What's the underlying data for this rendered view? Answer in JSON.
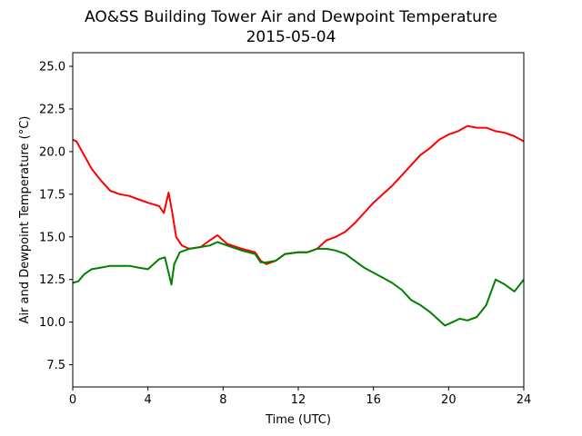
{
  "chart_data": {
    "type": "line",
    "title": "AO&SS Building Tower Air and Dewpoint Temperature",
    "subtitle": "2015-05-04",
    "xlabel": "Time (UTC)",
    "ylabel": "Air and Dewpoint Temperature (°C)",
    "xlim": [
      0,
      24
    ],
    "ylim": [
      6.2,
      25.8
    ],
    "xticks": [
      0,
      4,
      8,
      12,
      16,
      20,
      24
    ],
    "xtick_labels": [
      "0",
      "4",
      "8",
      "12",
      "16",
      "20",
      "24"
    ],
    "yticks": [
      7.5,
      10.0,
      12.5,
      15.0,
      17.5,
      20.0,
      22.5,
      25.0
    ],
    "ytick_labels": [
      "7.5",
      "10.0",
      "12.5",
      "15.0",
      "17.5",
      "20.0",
      "22.5",
      "25.0"
    ],
    "grid": false,
    "series": [
      {
        "color": "#ff0000",
        "x": [
          0,
          0.2,
          0.5,
          1.0,
          1.5,
          2.0,
          2.5,
          3.0,
          3.5,
          4.0,
          4.3,
          4.6,
          4.85,
          5.1,
          5.3,
          5.5,
          5.8,
          6.2,
          6.8,
          7.3,
          7.7,
          8.2,
          9.0,
          9.7,
          10.0,
          10.3,
          10.8,
          11.3,
          12.0,
          12.5,
          13.0,
          13.5,
          14.0,
          14.5,
          15.0,
          15.5,
          16.0,
          16.5,
          17.0,
          17.5,
          18.0,
          18.5,
          19.0,
          19.5,
          20.0,
          20.5,
          21.0,
          21.5,
          22.0,
          22.5,
          23.0,
          23.5,
          24.0
        ],
        "y": [
          20.7,
          20.6,
          20.0,
          19.0,
          18.3,
          17.7,
          17.5,
          17.4,
          17.2,
          17.0,
          16.9,
          16.8,
          16.4,
          17.6,
          16.4,
          15.0,
          14.5,
          14.3,
          14.4,
          14.8,
          15.1,
          14.6,
          14.3,
          14.1,
          13.6,
          13.4,
          13.6,
          14.0,
          14.1,
          14.1,
          14.3,
          14.8,
          15.0,
          15.3,
          15.8,
          16.4,
          17.0,
          17.5,
          18.0,
          18.6,
          19.2,
          19.8,
          20.2,
          20.7,
          21.0,
          21.2,
          21.5,
          21.4,
          21.4,
          21.2,
          21.1,
          20.9,
          20.6
        ]
      },
      {
        "color": "#008000",
        "x": [
          0,
          0.3,
          0.6,
          1.0,
          1.5,
          2.0,
          2.5,
          3.0,
          3.5,
          4.0,
          4.3,
          4.6,
          4.9,
          5.1,
          5.25,
          5.4,
          5.7,
          6.2,
          6.8,
          7.3,
          7.7,
          8.2,
          9.0,
          9.7,
          10.0,
          10.3,
          10.8,
          11.3,
          12.0,
          12.5,
          13.0,
          13.5,
          14.0,
          14.5,
          15.0,
          15.5,
          16.0,
          16.5,
          17.0,
          17.5,
          18.0,
          18.5,
          19.0,
          19.5,
          19.8,
          20.2,
          20.6,
          21.0,
          21.5,
          22.0,
          22.5,
          23.0,
          23.5,
          24.0
        ],
        "y": [
          12.3,
          12.4,
          12.8,
          13.1,
          13.2,
          13.3,
          13.3,
          13.3,
          13.2,
          13.1,
          13.4,
          13.7,
          13.8,
          12.9,
          12.2,
          13.4,
          14.1,
          14.3,
          14.4,
          14.5,
          14.7,
          14.5,
          14.2,
          14.0,
          13.5,
          13.5,
          13.6,
          14.0,
          14.1,
          14.1,
          14.3,
          14.3,
          14.2,
          14.0,
          13.6,
          13.2,
          12.9,
          12.6,
          12.3,
          11.9,
          11.3,
          11.0,
          10.6,
          10.1,
          9.8,
          10.0,
          10.2,
          10.1,
          10.3,
          11.0,
          12.5,
          12.2,
          11.8,
          12.5
        ]
      }
    ]
  }
}
